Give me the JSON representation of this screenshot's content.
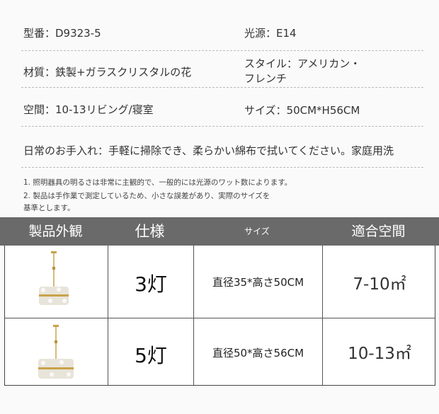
{
  "specs": {
    "model": "型番：D9323-5",
    "light_source": "光源：E14",
    "material": "材質：鉄製+ガラスクリスタルの花",
    "style_line1": "スタイル：アメリカン・",
    "style_line2": "フレンチ",
    "space": "空間：10-13リビング/寝室",
    "size": "サイズ：50CM*H56CM",
    "care": "日常のお手入れ：手軽に掃除でき、柔らかい綿布で拭いてください。家庭用洗"
  },
  "notes": [
    "1. 照明器具の明るさは非常に主観的で、一般的には光源のワット数によります。",
    "2. 製品は手作業で測定しているため、小さな誤差があり、実際のサイズを",
    "基準とします。"
  ],
  "table": {
    "headers": [
      "製品外観",
      "仕様",
      "サイズ",
      "適合空間"
    ],
    "rows": [
      {
        "spec": "3灯",
        "size": "直径35*高さ50CM",
        "area": "7-10㎡"
      },
      {
        "spec": "5灯",
        "size": "直径50*高さ56CM",
        "area": "10-13㎡"
      }
    ]
  },
  "colors": {
    "header_bg": "#6a6a6a",
    "lamp_gold": "#c9a24a"
  }
}
